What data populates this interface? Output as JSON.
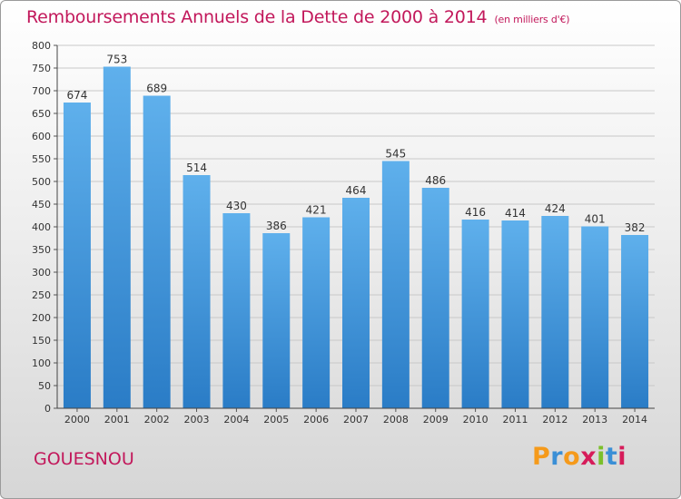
{
  "title": "Remboursements Annuels de la Dette de 2000 à 2014",
  "unit": "(en milliers d'€)",
  "location": "GOUESNOU",
  "brand": {
    "letters": [
      "P",
      "r",
      "o",
      "x",
      "i",
      "t",
      "i"
    ],
    "colors": [
      "#f59a1b",
      "#3a8fd6",
      "#f59a1b",
      "#d61c5a",
      "#7bbf2a",
      "#3a8fd6",
      "#d61c5a"
    ]
  },
  "colors": {
    "bar_top": "#5fb0ec",
    "bar_bottom": "#2a7cc6",
    "title": "#c2185b"
  },
  "chart_data": {
    "type": "bar",
    "title": "Remboursements Annuels de la Dette de 2000 à 2014",
    "ylabel": "en milliers d'€",
    "xlabel": "",
    "categories": [
      "2000",
      "2001",
      "2002",
      "2003",
      "2004",
      "2005",
      "2006",
      "2007",
      "2008",
      "2009",
      "2010",
      "2011",
      "2012",
      "2013",
      "2014"
    ],
    "values": [
      674,
      753,
      689,
      514,
      430,
      386,
      421,
      464,
      545,
      486,
      416,
      414,
      424,
      401,
      382
    ],
    "ylim": [
      0,
      800
    ],
    "yticks": [
      0,
      50,
      100,
      150,
      200,
      250,
      300,
      350,
      400,
      450,
      500,
      550,
      600,
      650,
      700,
      750,
      800
    ],
    "grid": true
  }
}
